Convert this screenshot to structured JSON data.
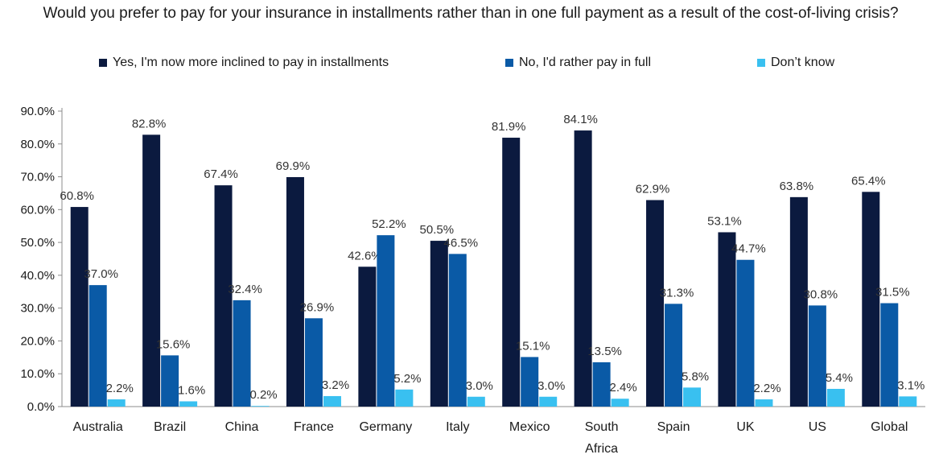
{
  "chart_data": {
    "type": "bar",
    "title": "Would you prefer to pay for your insurance in installments rather than in one full payment as a result of the cost-of-living crisis?",
    "categories": [
      "Australia",
      "Brazil",
      "China",
      "France",
      "Germany",
      "Italy",
      "Mexico",
      "South Africa",
      "Spain",
      "UK",
      "US",
      "Global"
    ],
    "series": [
      {
        "name": "Yes, I'm now more inclined to pay in installments",
        "color": "#0b1a3f",
        "values": [
          60.8,
          82.8,
          67.4,
          69.9,
          42.6,
          50.5,
          81.9,
          84.1,
          62.9,
          53.1,
          63.8,
          65.4
        ]
      },
      {
        "name": "No, I'd rather pay in full",
        "color": "#0a5aa6",
        "values": [
          37.0,
          15.6,
          32.4,
          26.9,
          52.2,
          46.5,
          15.1,
          13.5,
          31.3,
          44.7,
          30.8,
          31.5
        ]
      },
      {
        "name": "Don’t know",
        "color": "#39c0f0",
        "values": [
          2.2,
          1.6,
          0.2,
          3.2,
          5.2,
          3.0,
          3.0,
          2.4,
          5.8,
          2.2,
          5.4,
          3.1
        ]
      }
    ],
    "ylim": [
      0,
      90
    ],
    "ytick_step": 10,
    "value_format": "percent-1dp",
    "legend_position": "top",
    "grid": false
  }
}
